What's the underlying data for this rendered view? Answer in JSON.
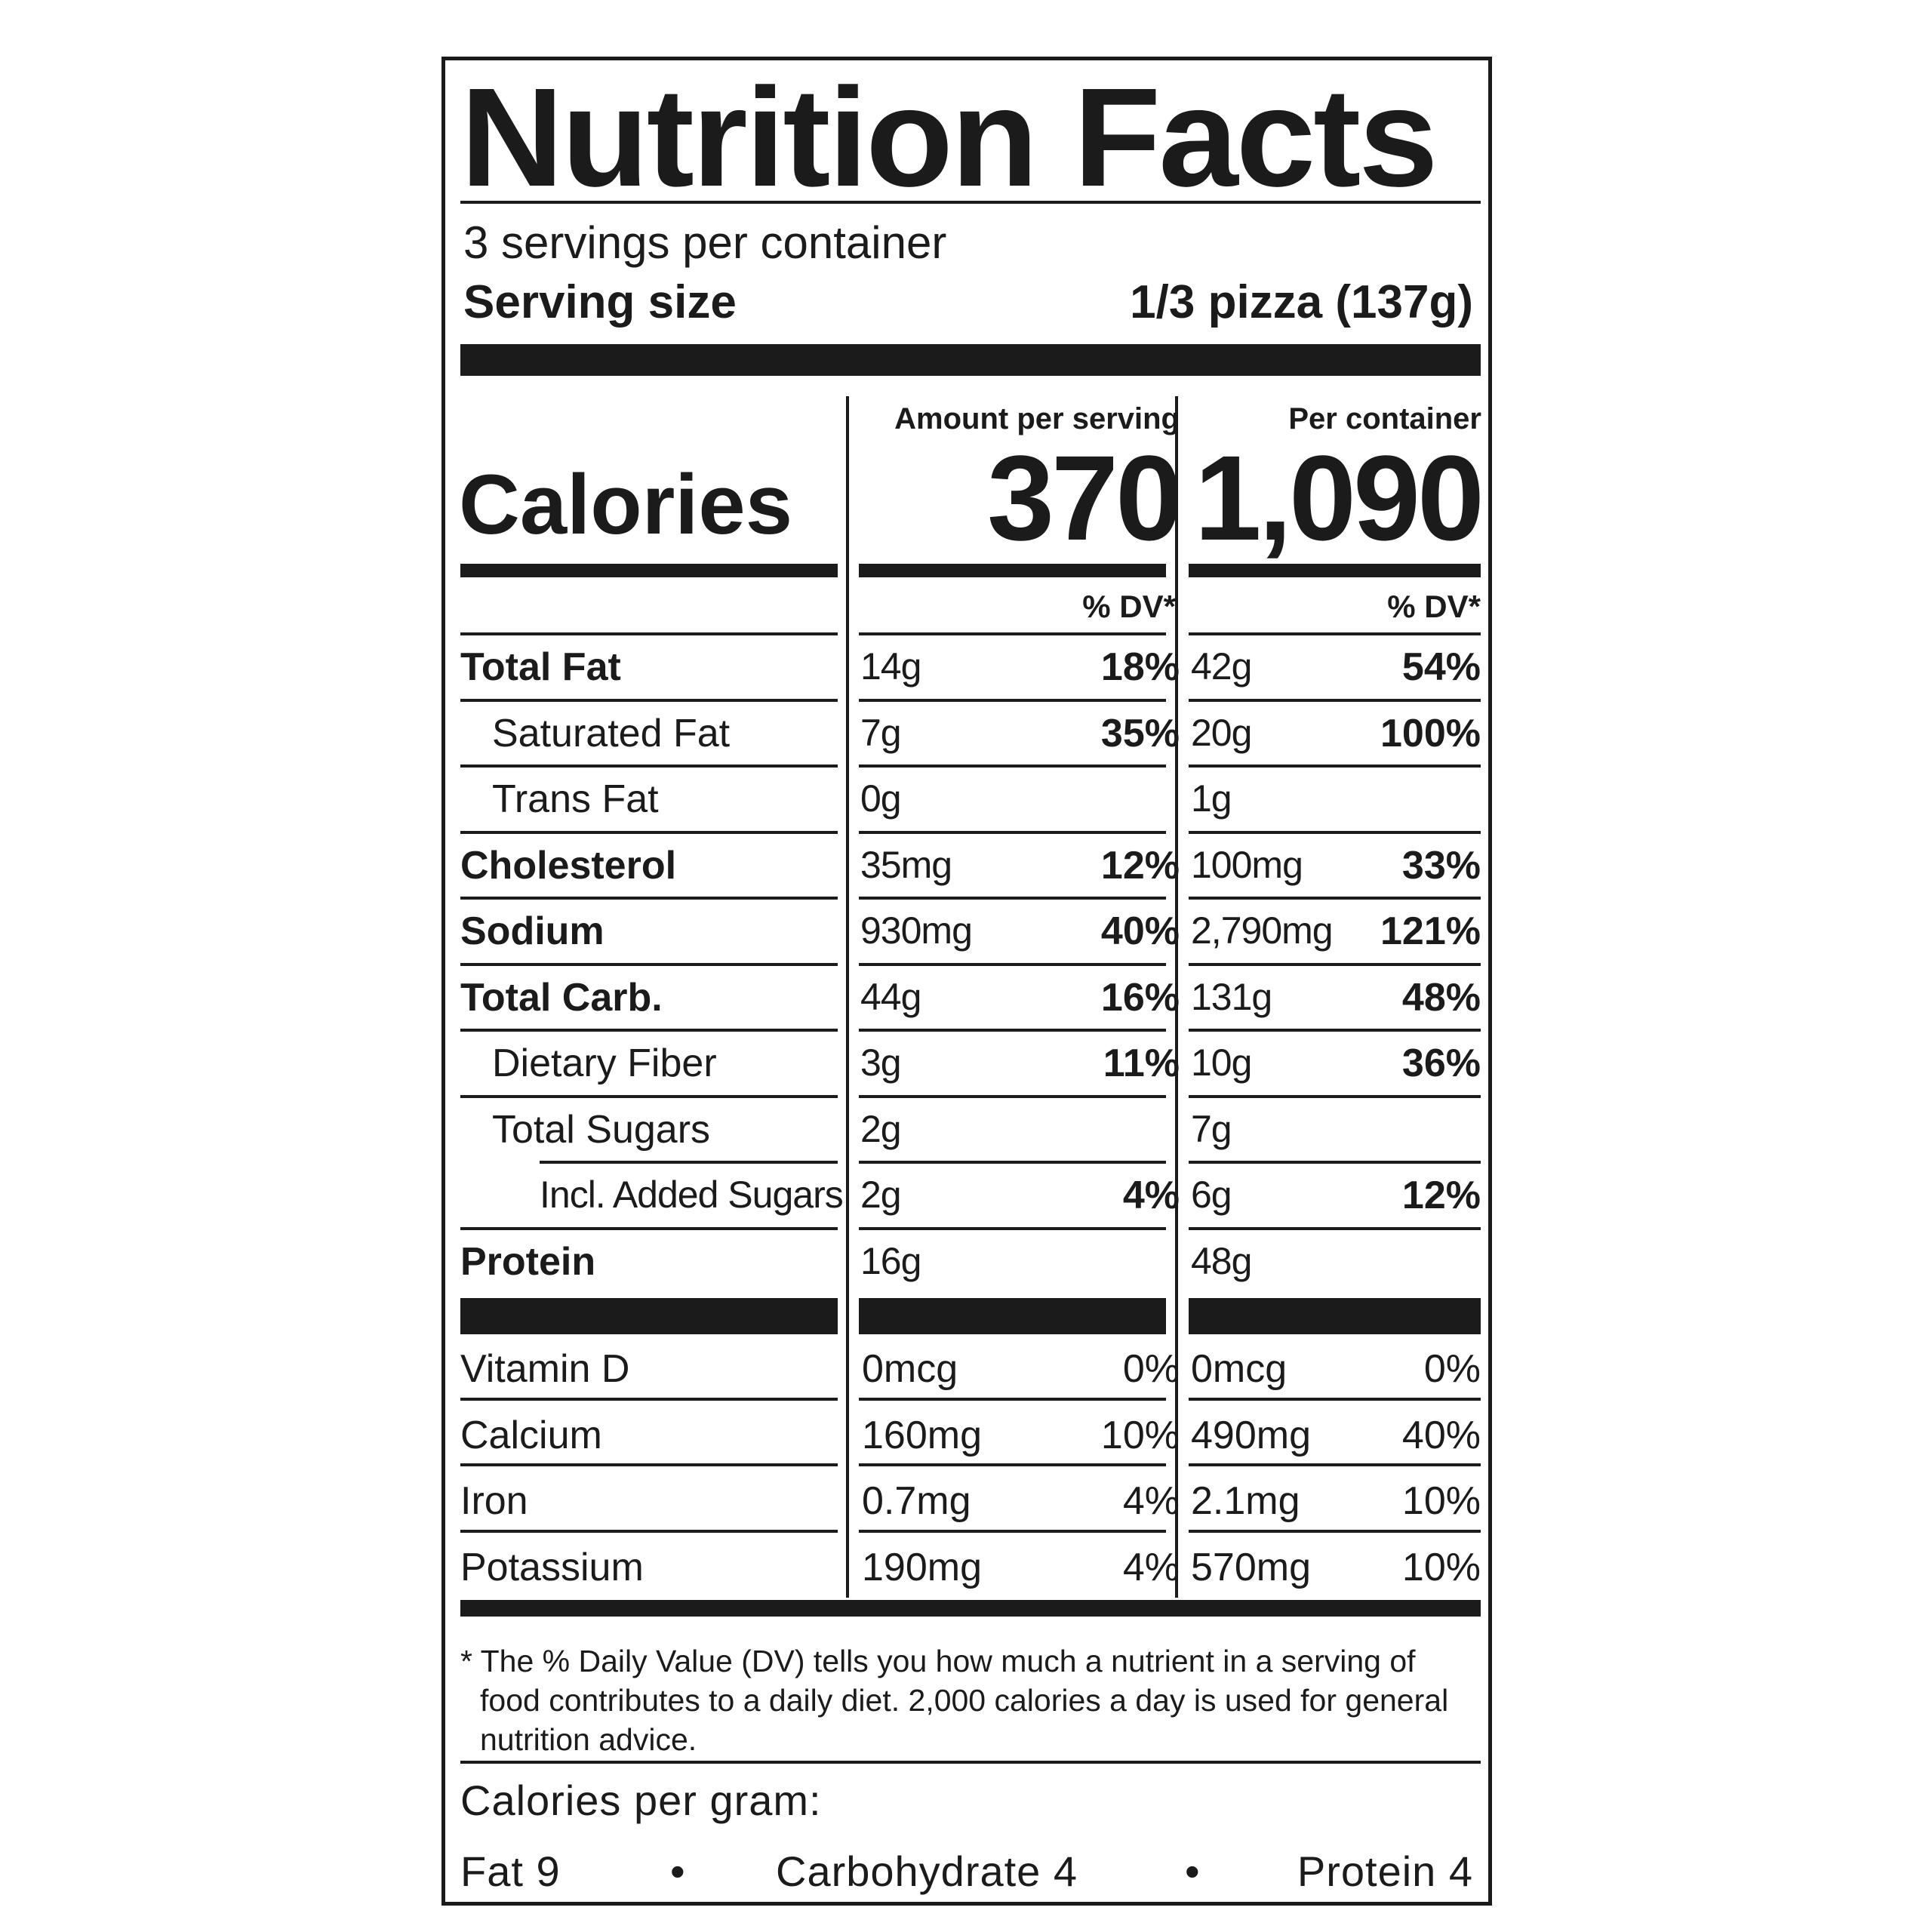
{
  "title": "Nutrition Facts",
  "servings_per_container": "3 servings per container",
  "serving_size_label": "Serving size",
  "serving_size_value": "1/3 pizza (137g)",
  "amount_per_serving_label": "Amount per serving",
  "per_container_label": "Per container",
  "calories_label": "Calories",
  "calories_per_serving": "370",
  "calories_per_container": "1,090",
  "dv_header": "% DV*",
  "nutrients": [
    {
      "name": "Total Fat",
      "serving_amount": "14g",
      "serving_dv": "18%",
      "container_amount": "42g",
      "container_dv": "54%"
    },
    {
      "name": "Saturated Fat",
      "serving_amount": "7g",
      "serving_dv": "35%",
      "container_amount": "20g",
      "container_dv": "100%"
    },
    {
      "name": "Trans Fat",
      "serving_amount": "0g",
      "serving_dv": "",
      "container_amount": "1g",
      "container_dv": ""
    },
    {
      "name": "Cholesterol",
      "serving_amount": "35mg",
      "serving_dv": "12%",
      "container_amount": "100mg",
      "container_dv": "33%"
    },
    {
      "name": "Sodium",
      "serving_amount": "930mg",
      "serving_dv": "40%",
      "container_amount": "2,790mg",
      "container_dv": "121%"
    },
    {
      "name": "Total Carb.",
      "serving_amount": "44g",
      "serving_dv": "16%",
      "container_amount": "131g",
      "container_dv": "48%"
    },
    {
      "name": "Dietary Fiber",
      "serving_amount": "3g",
      "serving_dv": "11%",
      "container_amount": "10g",
      "container_dv": "36%"
    },
    {
      "name": "Total Sugars",
      "serving_amount": "2g",
      "serving_dv": "",
      "container_amount": "7g",
      "container_dv": ""
    },
    {
      "name": "Incl. Added Sugars",
      "serving_amount": "2g",
      "serving_dv": "4%",
      "container_amount": "6g",
      "container_dv": "12%"
    },
    {
      "name": "Protein",
      "serving_amount": "16g",
      "serving_dv": "",
      "container_amount": "48g",
      "container_dv": ""
    }
  ],
  "vitamins": [
    {
      "name": "Vitamin D",
      "serving_amount": "0mcg",
      "serving_dv": "0%",
      "container_amount": "0mcg",
      "container_dv": "0%"
    },
    {
      "name": "Calcium",
      "serving_amount": "160mg",
      "serving_dv": "10%",
      "container_amount": "490mg",
      "container_dv": "40%"
    },
    {
      "name": "Iron",
      "serving_amount": "0.7mg",
      "serving_dv": "4%",
      "container_amount": "2.1mg",
      "container_dv": "10%"
    },
    {
      "name": "Potassium",
      "serving_amount": "190mg",
      "serving_dv": "4%",
      "container_amount": "570mg",
      "container_dv": "10%"
    }
  ],
  "footnote_lines": [
    "* The % Daily Value (DV) tells you how much a nutrient in a serving of",
    "food contributes to a daily diet. 2,000 calories a day is used for general",
    "nutrition advice."
  ],
  "calories_per_gram_label": "Calories per gram:",
  "calories_per_gram": {
    "fat": "Fat 9",
    "carbohydrate": "Carbohydrate 4",
    "protein": "Protein 4",
    "separator": "•"
  }
}
